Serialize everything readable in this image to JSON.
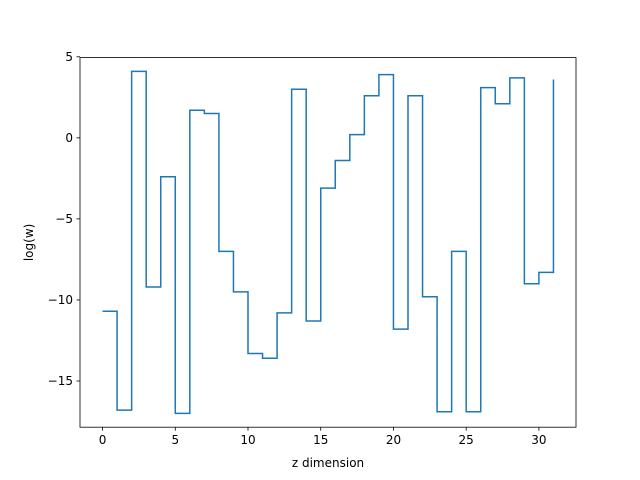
{
  "chart_data": {
    "type": "line",
    "drawstyle": "steps-post",
    "title": "",
    "xlabel": "z dimension",
    "ylabel": "log(w)",
    "xlim": [
      -1.55,
      32.55
    ],
    "ylim": [
      -17.85,
      4.95
    ],
    "xticks": [
      0,
      5,
      10,
      15,
      20,
      25,
      30
    ],
    "yticks": [
      -15,
      -10,
      -5,
      0,
      5
    ],
    "ytick_labels": [
      "−15",
      "−10",
      "−5",
      "0",
      "5"
    ],
    "grid": false,
    "series": [
      {
        "color": "#1f77b4",
        "x": [
          0,
          1,
          2,
          3,
          4,
          5,
          6,
          7,
          8,
          9,
          10,
          11,
          12,
          13,
          14,
          15,
          16,
          17,
          18,
          19,
          20,
          21,
          22,
          23,
          24,
          25,
          26,
          27,
          28,
          29,
          30,
          31
        ],
        "values": [
          -10.7,
          -16.8,
          4.1,
          -9.2,
          -2.4,
          -17.0,
          1.7,
          1.5,
          -7.0,
          -9.5,
          -13.3,
          -13.6,
          -10.8,
          3.0,
          -11.3,
          -3.1,
          -1.4,
          0.2,
          2.6,
          3.9,
          -11.8,
          2.6,
          -9.8,
          -16.9,
          -7.0,
          -16.9,
          3.1,
          2.1,
          3.7,
          -9.0,
          -8.3,
          3.6
        ]
      }
    ]
  }
}
